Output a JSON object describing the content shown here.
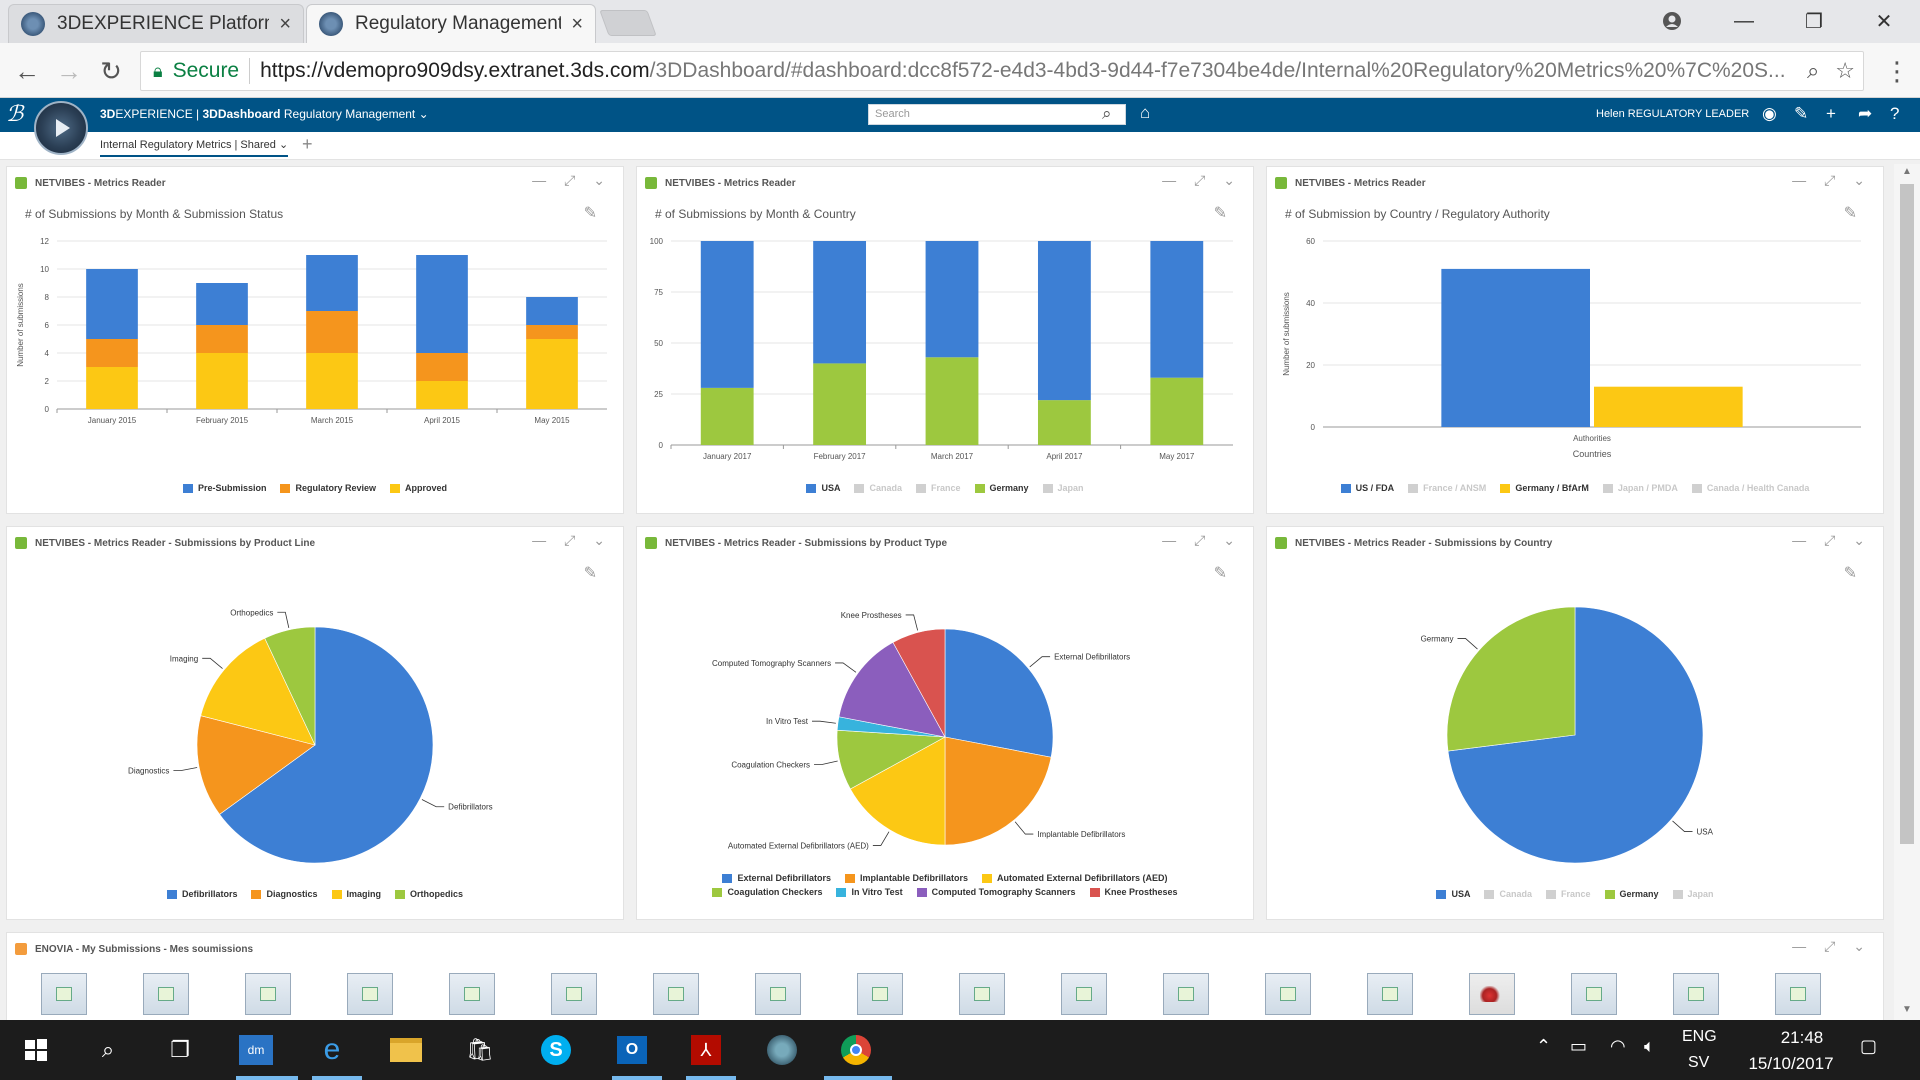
{
  "browser": {
    "tabs": [
      {
        "title": "3DEXPERIENCE Platform",
        "close": "×"
      },
      {
        "title": "Regulatory Management",
        "close": "×"
      }
    ],
    "window_controls": {
      "minimize": "—",
      "restore": "❐",
      "close": "✕"
    },
    "nav": {
      "back": "←",
      "forward": "→",
      "reload": "↻"
    },
    "address": {
      "secure_label": "Secure",
      "url_host": "https://vdemopro909dsy.extranet.3ds.com",
      "url_path": "/3DDashboard/#dashboard:dcc8f572-e4d3-4bd3-9d44-f7e7304be4de/Internal%20Regulatory%20Metrics%20%7C%20S..."
    }
  },
  "app": {
    "brand_bold": "3D",
    "brand_rest": "EXPERIENCE | ",
    "product": "3DDashboard",
    "app_name": " Regulatory Management ",
    "search_placeholder": "Search",
    "user": "Helen REGULATORY LEADER",
    "dashboard_tab": "Internal Regulatory Metrics | Shared ⌄",
    "add_tab": "+"
  },
  "colors": {
    "blue": "#3d7fd4",
    "orange": "#f5951d",
    "yellow": "#fcc814",
    "green": "#9dc83f",
    "purple": "#8b5ebd",
    "cyan": "#37b3dd",
    "red": "#d9534f",
    "disabled": "#d0d0d0",
    "app_bar": "#005386"
  },
  "widgets": {
    "w1": {
      "title": "NETVIBES - Metrics Reader",
      "subtitle": "# of Submissions by Month & Submission Status",
      "chart_data": {
        "type": "bar",
        "stacked": true,
        "ylabel": "Number of submissions",
        "ylim": [
          0,
          12
        ],
        "yticks": [
          0,
          2,
          4,
          6,
          8,
          10,
          12
        ],
        "categories": [
          "January 2015",
          "February 2015",
          "March 2015",
          "April 2015",
          "May 2015"
        ],
        "series": [
          {
            "name": "Approved",
            "color": "yellow",
            "values": [
              3,
              4,
              4,
              2,
              5
            ]
          },
          {
            "name": "Regulatory Review",
            "color": "orange",
            "values": [
              2,
              2,
              3,
              2,
              1
            ]
          },
          {
            "name": "Pre-Submission",
            "color": "blue",
            "values": [
              5,
              3,
              4,
              7,
              2
            ]
          }
        ],
        "legend": [
          {
            "label": "Pre-Submission",
            "color": "blue",
            "on": true
          },
          {
            "label": "Regulatory Review",
            "color": "orange",
            "on": true
          },
          {
            "label": "Approved",
            "color": "yellow",
            "on": true
          }
        ],
        "grid": true
      }
    },
    "w2": {
      "title": "NETVIBES - Metrics Reader",
      "subtitle": "# of Submissions by Month & Country",
      "chart_data": {
        "type": "bar",
        "stacked": true,
        "ylim": [
          0,
          100
        ],
        "yticks": [
          0,
          25,
          50,
          75,
          100
        ],
        "categories": [
          "January 2017",
          "February 2017",
          "March 2017",
          "April 2017",
          "May 2017"
        ],
        "series": [
          {
            "name": "Germany",
            "color": "green",
            "values": [
              28,
              40,
              43,
              22,
              33
            ]
          },
          {
            "name": "USA",
            "color": "blue",
            "values": [
              72,
              60,
              57,
              78,
              67
            ]
          }
        ],
        "legend": [
          {
            "label": "USA",
            "color": "blue",
            "on": true
          },
          {
            "label": "Canada",
            "color": "disabled",
            "on": false
          },
          {
            "label": "France",
            "color": "disabled",
            "on": false
          },
          {
            "label": "Germany",
            "color": "green",
            "on": true
          },
          {
            "label": "Japan",
            "color": "disabled",
            "on": false
          }
        ],
        "grid": true
      }
    },
    "w3": {
      "title": "NETVIBES - Metrics Reader",
      "subtitle": "# of Submission by Country / Regulatory Authority",
      "chart_data": {
        "type": "bar",
        "ylabel": "Number of submissions",
        "xlabel": "Countries",
        "ylim": [
          0,
          60
        ],
        "yticks": [
          0,
          20,
          40,
          60
        ],
        "categories": [
          "Authorities"
        ],
        "series": [
          {
            "name": "US / FDA",
            "color": "blue",
            "values": [
              51
            ]
          },
          {
            "name": "Germany / BfArM",
            "color": "yellow",
            "values": [
              13
            ]
          }
        ],
        "legend": [
          {
            "label": "US / FDA",
            "color": "blue",
            "on": true
          },
          {
            "label": "France / ANSM",
            "color": "disabled",
            "on": false
          },
          {
            "label": "Germany / BfArM",
            "color": "yellow",
            "on": true
          },
          {
            "label": "Japan / PMDA",
            "color": "disabled",
            "on": false
          },
          {
            "label": "Canada / Health Canada",
            "color": "disabled",
            "on": false
          }
        ],
        "grid": true
      }
    },
    "w4": {
      "title": "NETVIBES - Metrics Reader - Submissions by Product Line",
      "chart_data": {
        "type": "pie",
        "slices": [
          {
            "label": "Defibrillators",
            "value": 65,
            "color": "blue"
          },
          {
            "label": "Diagnostics",
            "value": 14,
            "color": "orange"
          },
          {
            "label": "Imaging",
            "value": 14,
            "color": "yellow"
          },
          {
            "label": "Orthopedics",
            "value": 7,
            "color": "green"
          }
        ],
        "legend": [
          {
            "label": "Defibrillators",
            "color": "blue",
            "on": true
          },
          {
            "label": "Diagnostics",
            "color": "orange",
            "on": true
          },
          {
            "label": "Imaging",
            "color": "yellow",
            "on": true
          },
          {
            "label": "Orthopedics",
            "color": "green",
            "on": true
          }
        ]
      }
    },
    "w5": {
      "title": "NETVIBES - Metrics Reader - Submissions by Product Type",
      "chart_data": {
        "type": "pie",
        "slices": [
          {
            "label": "External Defibrillators",
            "value": 28,
            "color": "blue"
          },
          {
            "label": "Implantable Defibrillators",
            "value": 22,
            "color": "orange"
          },
          {
            "label": "Automated External Defibrillators (AED)",
            "value": 17,
            "color": "yellow"
          },
          {
            "label": "Coagulation Checkers",
            "value": 9,
            "color": "green"
          },
          {
            "label": "In Vitro Test",
            "value": 2,
            "color": "cyan"
          },
          {
            "label": "Computed Tomography Scanners",
            "value": 14,
            "color": "purple"
          },
          {
            "label": "Knee Prostheses",
            "value": 8,
            "color": "red"
          }
        ],
        "legend": [
          {
            "label": "External Defibrillators",
            "color": "blue",
            "on": true
          },
          {
            "label": "Implantable Defibrillators",
            "color": "orange",
            "on": true
          },
          {
            "label": "Automated External Defibrillators (AED)",
            "color": "yellow",
            "on": true
          },
          {
            "label": "Coagulation Checkers",
            "color": "green",
            "on": true
          },
          {
            "label": "In Vitro Test",
            "color": "cyan",
            "on": true
          },
          {
            "label": "Computed Tomography Scanners",
            "color": "purple",
            "on": true
          },
          {
            "label": "Knee Prostheses",
            "color": "red",
            "on": true
          }
        ]
      }
    },
    "w6": {
      "title": "NETVIBES - Metrics Reader - Submissions by Country",
      "chart_data": {
        "type": "pie",
        "slices": [
          {
            "label": "USA",
            "value": 73,
            "color": "blue"
          },
          {
            "label": "Germany",
            "value": 27,
            "color": "green"
          }
        ],
        "legend": [
          {
            "label": "USA",
            "color": "blue",
            "on": true
          },
          {
            "label": "Canada",
            "color": "disabled",
            "on": false
          },
          {
            "label": "France",
            "color": "disabled",
            "on": false
          },
          {
            "label": "Germany",
            "color": "green",
            "on": true
          },
          {
            "label": "Japan",
            "color": "disabled",
            "on": false
          }
        ]
      }
    },
    "w7": {
      "title": "ENOVIA - My Submissions - Mes soumissions"
    }
  },
  "taskbar": {
    "lang_top": "ENG",
    "lang_bottom": "SV",
    "time": "21:48",
    "date": "15/10/2017"
  }
}
